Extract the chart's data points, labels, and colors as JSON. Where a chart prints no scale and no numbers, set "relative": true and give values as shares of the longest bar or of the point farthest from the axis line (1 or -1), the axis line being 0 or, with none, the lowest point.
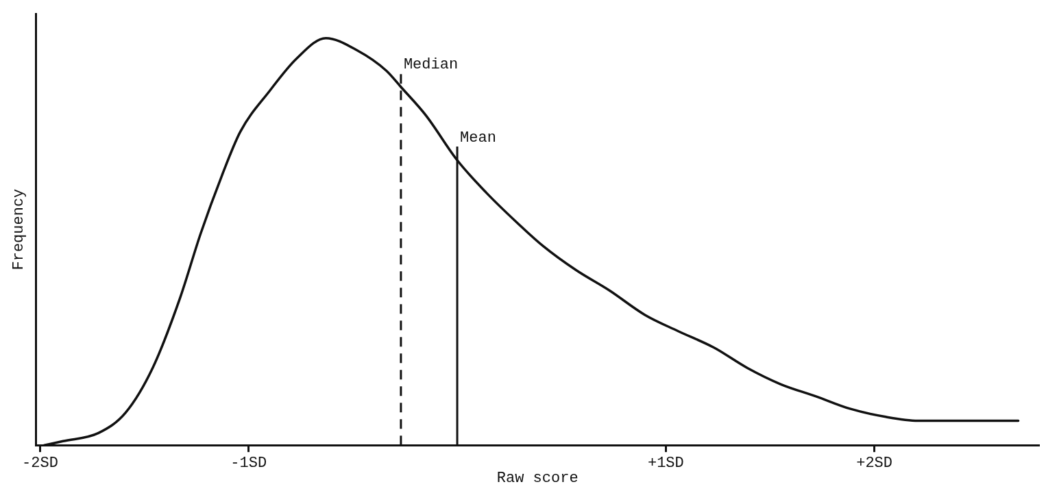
{
  "chart_data": {
    "type": "line",
    "relative": true,
    "xlabel": "Raw score",
    "ylabel": "Frequency",
    "xlim": [
      -2.02,
      2.79
    ],
    "xticks": [
      {
        "value": -2,
        "label": "-2SD"
      },
      {
        "value": -1,
        "label": "-1SD"
      },
      {
        "value": 1,
        "label": "+1SD"
      },
      {
        "value": 2,
        "label": "+2SD"
      }
    ],
    "grid": false,
    "legend": false,
    "marker": "none",
    "line_style": "solid",
    "series": [
      {
        "color": "#111111",
        "x": [
          -1.98,
          -1.89,
          -1.72,
          -1.59,
          -1.46,
          -1.33,
          -1.23,
          -1.13,
          -1.04,
          -0.9,
          -0.77,
          -0.63,
          -0.48,
          -0.34,
          -0.27,
          -0.15,
          0,
          0.14,
          0.28,
          0.41,
          0.57,
          0.73,
          0.9,
          1.06,
          1.23,
          1.39,
          1.55,
          1.72,
          1.88,
          2.05,
          2.21,
          2.37,
          2.69
        ],
        "values": [
          0,
          0.01,
          0.03,
          0.08,
          0.19,
          0.36,
          0.52,
          0.66,
          0.77,
          0.87,
          0.95,
          1,
          0.97,
          0.92,
          0.88,
          0.81,
          0.7,
          0.62,
          0.55,
          0.49,
          0.43,
          0.38,
          0.32,
          0.28,
          0.24,
          0.19,
          0.15,
          0.12,
          0.09,
          0.07,
          0.06,
          0.06,
          0.06
        ]
      }
    ],
    "ref_lines": [
      {
        "axis": "x",
        "value": -0.27,
        "label": "Median",
        "line_style": "dashed",
        "color": "#111111"
      },
      {
        "axis": "x",
        "value": 0,
        "label": "Mean",
        "line_style": "solid",
        "color": "#111111"
      }
    ]
  }
}
